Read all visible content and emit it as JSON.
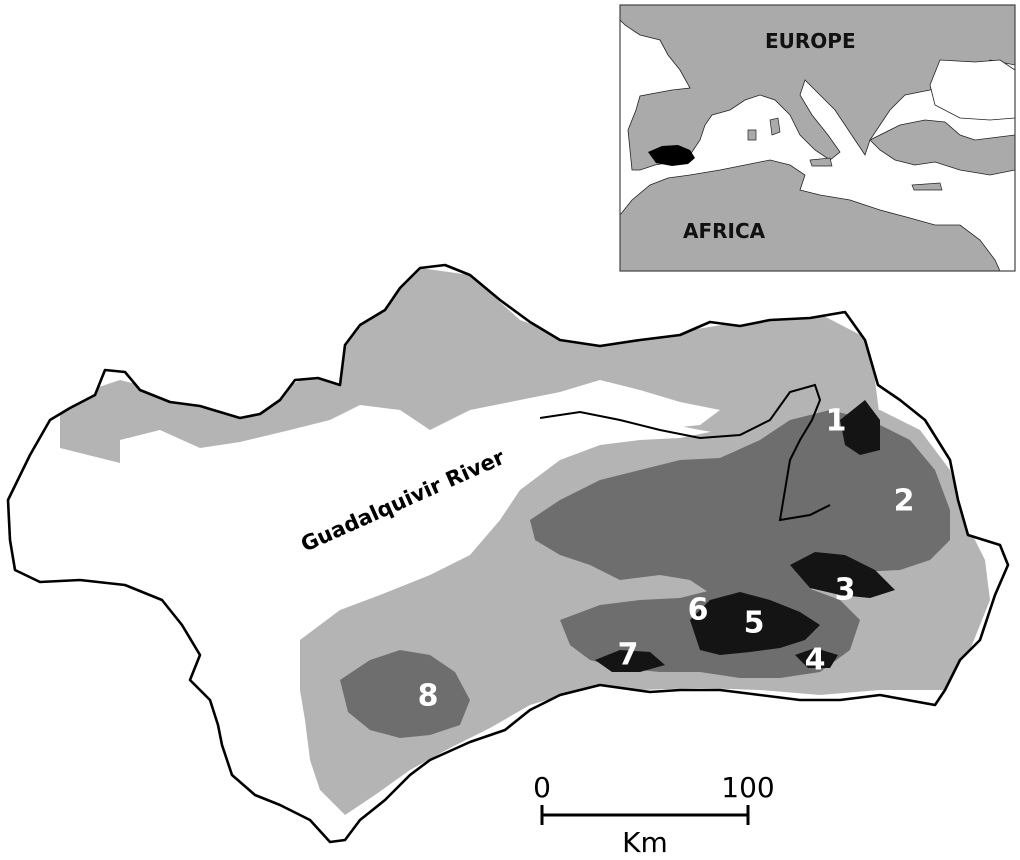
{
  "river": {
    "label": "Guadalquivir River"
  },
  "inset": {
    "continents": [
      {
        "id": "europe",
        "label": "EUROPE"
      },
      {
        "id": "africa",
        "label": "AFRICA"
      }
    ]
  },
  "regions": [
    {
      "id": "1",
      "label": "1"
    },
    {
      "id": "2",
      "label": "2"
    },
    {
      "id": "3",
      "label": "3"
    },
    {
      "id": "4",
      "label": "4"
    },
    {
      "id": "5",
      "label": "5"
    },
    {
      "id": "6",
      "label": "6"
    },
    {
      "id": "7",
      "label": "7"
    },
    {
      "id": "8",
      "label": "8"
    }
  ],
  "scale_bar": {
    "start": "0",
    "end": "100",
    "unit": "Km"
  },
  "colors": {
    "lowland": "#ffffff",
    "mid_elevation": "#b4b4b4",
    "high_elevation": "#6e6e6e",
    "peak_elevation": "#141414",
    "border": "#000000",
    "inset_land": "#aaaaaa",
    "inset_sea": "#ffffff",
    "highlight": "#000000"
  }
}
